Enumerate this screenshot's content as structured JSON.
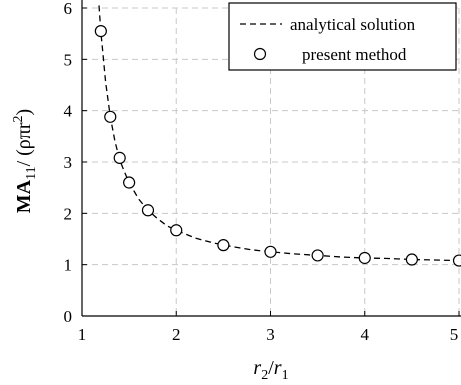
{
  "chart_data": {
    "type": "line",
    "title": "",
    "xlabel": {
      "base": "r",
      "sub1": "2",
      "mid": "/",
      "sub2": "1"
    },
    "ylabel": {
      "bold": "MA",
      "bold_sub": "11",
      "rest": "/ (ρπr",
      "sup": "2",
      "close": ")"
    },
    "xlim": [
      1,
      5
    ],
    "ylim": [
      0,
      6
    ],
    "xticks": [
      1,
      2,
      3,
      4,
      5
    ],
    "yticks": [
      0,
      1,
      2,
      3,
      4,
      5,
      6
    ],
    "xtick_labels": [
      "1",
      "2",
      "3",
      "4",
      "5"
    ],
    "ytick_labels": [
      "0",
      "1",
      "2",
      "3",
      "4",
      "5",
      "6"
    ],
    "grid": true,
    "legend_position": "top-right",
    "series": [
      {
        "name": "analytical solution",
        "style": "dashed",
        "formula": "(r^2 + 1) / (r^2 - 1)",
        "x": [
          1.18,
          1.2,
          1.25,
          1.3,
          1.35,
          1.4,
          1.45,
          1.5,
          1.6,
          1.7,
          1.8,
          1.9,
          2.0,
          2.2,
          2.4,
          2.6,
          2.8,
          3.0,
          3.25,
          3.5,
          3.75,
          4.0,
          4.25,
          4.5,
          4.75,
          5.0
        ],
        "y": [
          6.05,
          5.55,
          4.56,
          3.88,
          3.4,
          3.04,
          2.81,
          2.6,
          2.28,
          2.06,
          1.9,
          1.76,
          1.67,
          1.52,
          1.42,
          1.35,
          1.29,
          1.25,
          1.21,
          1.18,
          1.15,
          1.13,
          1.12,
          1.1,
          1.09,
          1.08
        ]
      },
      {
        "name": "present method",
        "style": "markers",
        "x": [
          1.2,
          1.3,
          1.4,
          1.5,
          1.7,
          2.0,
          2.5,
          3.0,
          3.5,
          4.0,
          4.5,
          5.0
        ],
        "y": [
          5.55,
          3.88,
          3.08,
          2.6,
          2.06,
          1.67,
          1.38,
          1.25,
          1.18,
          1.13,
          1.1,
          1.08
        ]
      }
    ]
  }
}
